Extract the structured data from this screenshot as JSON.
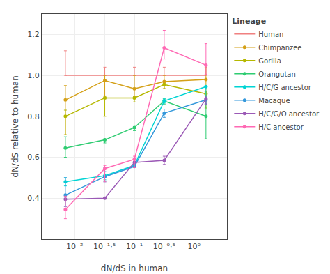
{
  "chart_data": {
    "type": "line",
    "xlabel": "dN/dS in human",
    "ylabel": "dN/dS relative to human",
    "legend_title": "Lineage",
    "x": [
      0.007,
      0.032,
      0.1,
      0.316,
      1.58
    ],
    "series": [
      {
        "name": "Human",
        "color": "#f08080",
        "marker": "none",
        "values": [
          1.0,
          1.0,
          1.0,
          1.0,
          1.0
        ],
        "error_minus": [
          0.0,
          0.0,
          0.0,
          0.0,
          0.0
        ],
        "error_plus": [
          0.12,
          0.04,
          0.04,
          0.04,
          0.04
        ]
      },
      {
        "name": "Chimpanzee",
        "color": "#d4a017",
        "marker": "circle",
        "values": [
          0.88,
          0.975,
          0.935,
          0.97,
          0.98
        ],
        "error_minus": [
          0.17,
          0.08,
          0.04,
          0.035,
          0.09
        ],
        "error_plus": [
          0.07,
          0.025,
          0.065,
          0.03,
          0.07
        ]
      },
      {
        "name": "Gorilla",
        "color": "#b5b800",
        "marker": "circle",
        "values": [
          0.8,
          0.89,
          0.89,
          0.955,
          0.91
        ],
        "error_minus": [
          0.09,
          0.09,
          0.02,
          0.02,
          0.07
        ],
        "error_plus": [
          0.03,
          0.01,
          0.005,
          0.005,
          0.01
        ]
      },
      {
        "name": "Orangutan",
        "color": "#2ecc71",
        "marker": "circle",
        "values": [
          0.645,
          0.685,
          0.745,
          0.875,
          0.8
        ],
        "error_minus": [
          0.045,
          0.015,
          0.015,
          0.015,
          0.11
        ],
        "error_plus": [
          0.055,
          0.005,
          0.005,
          0.01,
          0.1
        ]
      },
      {
        "name": "H/C/G ancestor",
        "color": "#00d4d4",
        "marker": "circle",
        "values": [
          0.48,
          0.51,
          0.56,
          0.875,
          0.945
        ],
        "error_minus": [
          0.02,
          0.02,
          0.005,
          0.01,
          0.06
        ],
        "error_plus": [
          0.02,
          0.04,
          0.005,
          0.01,
          0.005
        ]
      },
      {
        "name": "Macaque",
        "color": "#3498db",
        "marker": "circle",
        "values": [
          0.415,
          0.505,
          0.555,
          0.815,
          0.88
        ],
        "error_minus": [
          0.055,
          0.025,
          0.005,
          0.02,
          0.02
        ],
        "error_plus": [
          0.085,
          0.025,
          0.005,
          0.02,
          0.02
        ]
      },
      {
        "name": "H/C/G/O ancestor",
        "color": "#9b59b6",
        "marker": "circle",
        "values": [
          0.395,
          0.4,
          0.575,
          0.585,
          0.885
        ],
        "error_minus": [
          0.035,
          0.0,
          0.025,
          0.02,
          0.025
        ],
        "error_plus": [
          0.005,
          0.0,
          0.005,
          0.02,
          0.015
        ]
      },
      {
        "name": "H/C ancestor",
        "color": "#ff69b4",
        "marker": "circle",
        "values": [
          0.345,
          0.545,
          0.59,
          1.135,
          1.05
        ],
        "error_minus": [
          0.045,
          0.065,
          0.04,
          0.055,
          0.045
        ],
        "error_plus": [
          0.065,
          0.015,
          0.015,
          0.085,
          0.105
        ]
      }
    ],
    "log": "x",
    "xlim": [
      0.0028183829312644535,
      3.548133892335755
    ],
    "xticks": [
      {
        "value": 0.01,
        "label": "10⁻²"
      },
      {
        "value": 0.0316,
        "label": "10⁻¹·⁵"
      },
      {
        "value": 0.1,
        "label": "10⁻¹"
      },
      {
        "value": 0.316,
        "label": "10⁻⁰·⁵"
      },
      {
        "value": 1.0,
        "label": "10⁰"
      }
    ],
    "ylim": [
      0.2,
      1.3
    ],
    "yticks": [
      0.4,
      0.6,
      0.8,
      {
        "value": 1.0,
        "label": "1.0"
      },
      1.2
    ],
    "grid": true,
    "legend": "right"
  }
}
